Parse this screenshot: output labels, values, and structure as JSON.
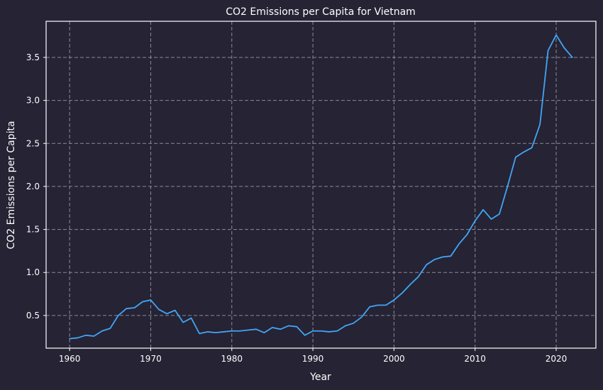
{
  "chart_data": {
    "type": "line",
    "title": "CO2 Emissions per Capita for Vietnam",
    "xlabel": "Year",
    "ylabel": "CO2 Emissions per Capita",
    "xlim": [
      1957.1,
      2024.9
    ],
    "ylim": [
      0.12,
      3.92
    ],
    "xticks": [
      1960,
      1970,
      1980,
      1990,
      2000,
      2010,
      2020
    ],
    "yticks": [
      0.5,
      1.0,
      1.5,
      2.0,
      2.5,
      3.0,
      3.5
    ],
    "xtick_labels": [
      "1960",
      "1970",
      "1980",
      "1990",
      "2000",
      "2010",
      "2020"
    ],
    "ytick_labels": [
      "0.5",
      "1.0",
      "1.5",
      "2.0",
      "2.5",
      "3.0",
      "3.5"
    ],
    "grid": true,
    "colors": {
      "background": "#252334",
      "line": "#42a5f5",
      "grid": "#8d8b96",
      "text": "#ffffff"
    },
    "series": [
      {
        "x": [
          1960,
          1961,
          1962,
          1963,
          1964,
          1965,
          1966,
          1967,
          1968,
          1969,
          1970,
          1971,
          1972,
          1973,
          1974,
          1975,
          1976,
          1977,
          1978,
          1979,
          1980,
          1981,
          1982,
          1983,
          1984,
          1985,
          1986,
          1987,
          1988,
          1989,
          1990,
          1991,
          1992,
          1993,
          1994,
          1995,
          1996,
          1997,
          1998,
          1999,
          2000,
          2001,
          2002,
          2003,
          2004,
          2005,
          2006,
          2007,
          2008,
          2009,
          2010,
          2011,
          2012,
          2013,
          2014,
          2015,
          2016,
          2017,
          2018,
          2019,
          2020,
          2021,
          2022
        ],
        "values": [
          0.23,
          0.24,
          0.27,
          0.26,
          0.32,
          0.35,
          0.5,
          0.58,
          0.59,
          0.66,
          0.68,
          0.57,
          0.52,
          0.56,
          0.42,
          0.47,
          0.29,
          0.31,
          0.3,
          0.31,
          0.32,
          0.32,
          0.33,
          0.34,
          0.3,
          0.36,
          0.34,
          0.38,
          0.37,
          0.27,
          0.32,
          0.32,
          0.31,
          0.32,
          0.38,
          0.41,
          0.48,
          0.6,
          0.62,
          0.62,
          0.68,
          0.76,
          0.86,
          0.95,
          1.09,
          1.15,
          1.18,
          1.19,
          1.33,
          1.44,
          1.6,
          1.73,
          1.62,
          1.68,
          2.0,
          2.34,
          2.4,
          2.45,
          2.72,
          3.58,
          3.76,
          3.61,
          3.5
        ]
      }
    ]
  }
}
